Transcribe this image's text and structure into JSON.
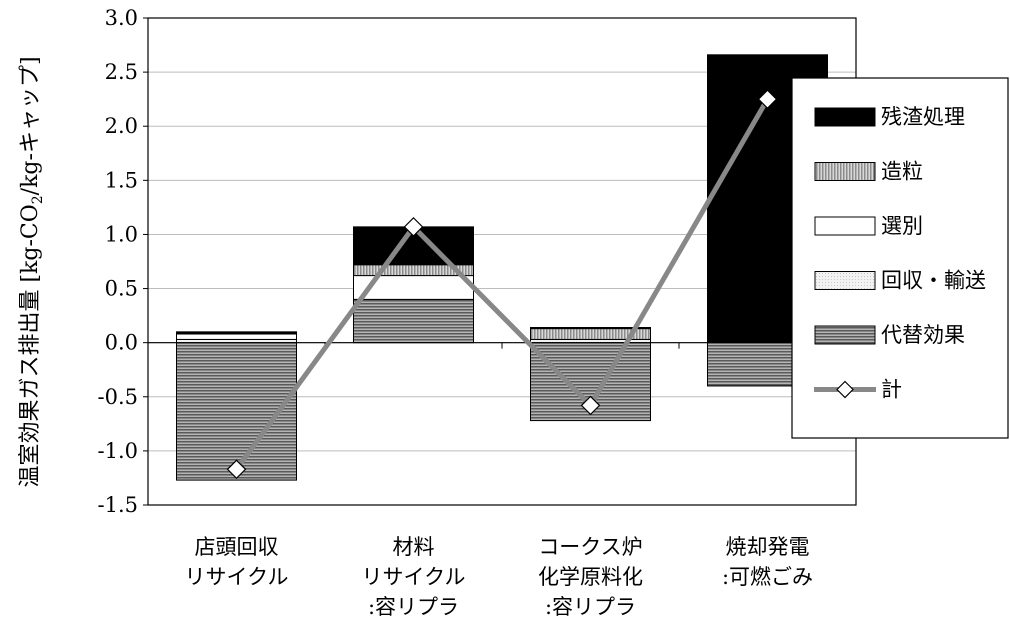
{
  "chart_data": {
    "type": "bar",
    "stacked": true,
    "ylabel": "温室効果ガス排出量 [kg-CO2/kg-キャップ]",
    "ylabel_parts": {
      "before": "温室効果ガス排出量 [kg-CO",
      "subscript": "2",
      "after": "/kg-キャップ]"
    },
    "ylim": [
      -1.5,
      3.0
    ],
    "yticks": [
      "3.0",
      "2.5",
      "2.0",
      "1.5",
      "1.0",
      "0.5",
      "0.0",
      "-0.5",
      "-1.0",
      "-1.5"
    ],
    "grid": true,
    "legend_position": "right",
    "categories": [
      [
        "店頭回収",
        "リサイクル"
      ],
      [
        "材料",
        "リサイクル",
        ":容リプラ"
      ],
      [
        "コークス炉",
        "化学原料化",
        ":容リプラ"
      ],
      [
        "焼却発電",
        ":可燃ごみ"
      ]
    ],
    "series": [
      {
        "name": "代替効果",
        "values": [
          -1.27,
          0.4,
          -0.72,
          -0.4
        ],
        "color": "#8c8c8c",
        "pattern": "hstripe-dark"
      },
      {
        "name": "回収・輸送",
        "values": [
          0.03,
          0.0,
          0.03,
          0.0
        ],
        "color": "#e6e6e6",
        "pattern": "dots"
      },
      {
        "name": "選別",
        "values": [
          0.05,
          0.22,
          0.0,
          0.0
        ],
        "color": "#ffffff",
        "pattern": "none"
      },
      {
        "name": "造粒",
        "values": [
          0.0,
          0.1,
          0.1,
          0.0
        ],
        "color": "#c0c0c0",
        "pattern": "vstripe"
      },
      {
        "name": "残渣処理",
        "values": [
          0.02,
          0.35,
          0.01,
          2.66
        ],
        "color": "#000000",
        "pattern": "solid"
      }
    ],
    "total": {
      "name": "計",
      "values": [
        -1.17,
        1.07,
        -0.58,
        2.25
      ],
      "color": "#888888",
      "marker": "diamond"
    },
    "legend_order": [
      "残渣処理",
      "造粒",
      "選別",
      "回収・輸送",
      "代替効果",
      "計"
    ]
  }
}
